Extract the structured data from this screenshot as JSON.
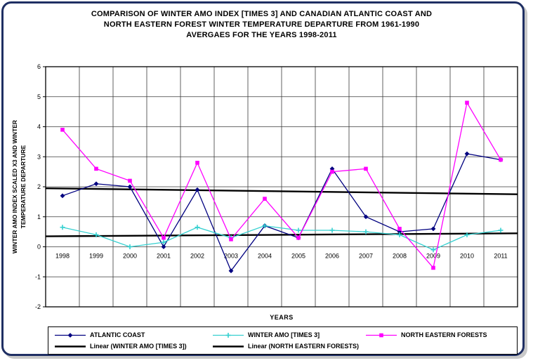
{
  "window": {
    "background": "#ffffff",
    "frame_border_color": "#1f2f63"
  },
  "title": {
    "line1": "COMPARISON OF WINTER AMO INDEX [TIMES 3] AND CANADIAN ATLANTIC COAST AND",
    "line2": "NORTH EASTERN FOREST WINTER TEMPERATURE DEPARTURE FROM 1961-1990",
    "line3": "AVERGAES FOR THE YEARS 1998-2011"
  },
  "axes": {
    "y_axis_label_line1": "WINTER AMO INDEX SCALED X3 AND WINTER",
    "y_axis_label_line2": "TEMPERATURE DEPARTURE",
    "x_axis_label": "YEARS"
  },
  "chart_data": {
    "type": "line",
    "title": "COMPARISON OF WINTER AMO INDEX [TIMES 3] AND CANADIAN ATLANTIC COAST AND NORTH EASTERN FOREST WINTER TEMPERATURE DEPARTURE FROM 1961-1990 AVERGAES FOR THE YEARS 1998-2011",
    "xlabel": "YEARS",
    "ylabel": "WINTER AMO INDEX SCALED X3 AND WINTER TEMPERATURE DEPARTURE",
    "categories": [
      "1998",
      "1999",
      "2000",
      "2001",
      "2002",
      "2003",
      "2004",
      "2005",
      "2006",
      "2007",
      "2008",
      "2009",
      "2010",
      "2011"
    ],
    "series": [
      {
        "name": "ATLANTIC COAST",
        "color": "#000080",
        "marker": "diamond",
        "values": [
          1.7,
          2.1,
          2.0,
          0.0,
          1.9,
          -0.8,
          0.7,
          0.3,
          2.6,
          1.0,
          0.5,
          0.6,
          3.1,
          2.9
        ]
      },
      {
        "name": "WINTER AMO [TIMES 3]",
        "color": "#35d0d0",
        "marker": "plus",
        "values": [
          0.65,
          0.4,
          0.0,
          0.15,
          0.65,
          0.3,
          0.7,
          0.55,
          0.55,
          0.5,
          0.4,
          -0.1,
          0.4,
          0.55
        ]
      },
      {
        "name": "NORTH EASTERN FORESTS",
        "color": "#ff00ff",
        "marker": "square",
        "values": [
          3.9,
          2.6,
          2.2,
          0.3,
          2.8,
          0.25,
          1.6,
          0.3,
          2.5,
          2.6,
          0.6,
          -0.7,
          4.8,
          2.9
        ]
      }
    ],
    "trend_lines": [
      {
        "name": "Linear (WINTER AMO [TIMES 3])",
        "color": "#000000",
        "start": 0.35,
        "end": 0.45
      },
      {
        "name": "Linear (NORTH EASTERN FORESTS)",
        "color": "#000000",
        "start": 1.95,
        "end": 1.75
      }
    ],
    "ylim": [
      -2,
      6
    ],
    "y_ticks": [
      -2,
      -1,
      0,
      1,
      2,
      3,
      4,
      5,
      6
    ],
    "grid": true,
    "legend_position": "bottom"
  }
}
